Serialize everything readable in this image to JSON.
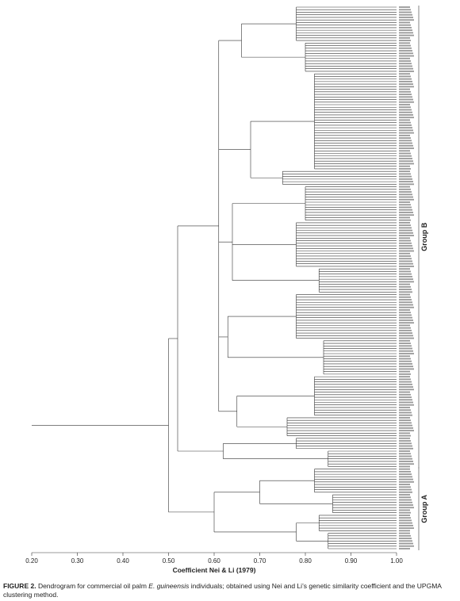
{
  "chart_data": {
    "type": "dendrogram",
    "x_label": "Coefficient Nei & Li (1979)",
    "xlim": [
      0.2,
      1.0
    ],
    "xticks": [
      {
        "value": 0.2,
        "label": "0.20"
      },
      {
        "value": 0.3,
        "label": "0.30"
      },
      {
        "value": 0.4,
        "label": "0.40"
      },
      {
        "value": 0.5,
        "label": "0.50"
      },
      {
        "value": 0.6,
        "label": "0.60"
      },
      {
        "value": 0.7,
        "label": "0.70"
      },
      {
        "value": 0.8,
        "label": "0.80"
      },
      {
        "value": 0.9,
        "label": "0.90"
      },
      {
        "value": 1.0,
        "label": "1.00"
      }
    ],
    "groups": [
      "Group B",
      "Group A"
    ],
    "tree": {
      "height": 0.5,
      "children": [
        {
          "height": 0.52,
          "children": [
            {
              "height": 0.61,
              "children": [
                {
                  "height": 0.66,
                  "children": [
                    {
                      "height": 0.78,
                      "size": 14
                    },
                    {
                      "height": 0.8,
                      "size": 12
                    }
                  ]
                },
                {
                  "height": 0.68,
                  "children": [
                    {
                      "height": 0.82,
                      "size": 38
                    },
                    {
                      "height": 0.75,
                      "size": 6
                    }
                  ]
                },
                {
                  "height": 0.64,
                  "children": [
                    {
                      "height": 0.8,
                      "size": 14
                    },
                    {
                      "height": 0.78,
                      "size": 18
                    },
                    {
                      "height": 0.83,
                      "size": 10
                    }
                  ]
                },
                {
                  "height": 0.63,
                  "children": [
                    {
                      "height": 0.78,
                      "size": 18
                    },
                    {
                      "height": 0.84,
                      "size": 14
                    }
                  ]
                },
                {
                  "height": 0.65,
                  "children": [
                    {
                      "height": 0.82,
                      "size": 16
                    },
                    {
                      "height": 0.76,
                      "size": 8
                    }
                  ]
                }
              ]
            },
            {
              "height": 0.62,
              "children": [
                {
                  "height": 0.78,
                  "size": 5
                },
                {
                  "height": 0.85,
                  "size": 7
                }
              ]
            }
          ]
        },
        {
          "height": 0.6,
          "children": [
            {
              "height": 0.7,
              "children": [
                {
                  "height": 0.82,
                  "size": 10
                },
                {
                  "height": 0.86,
                  "size": 8
                }
              ]
            },
            {
              "height": 0.78,
              "children": [
                {
                  "height": 0.83,
                  "size": 7
                },
                {
                  "height": 0.85,
                  "size": 7
                }
              ]
            }
          ]
        }
      ]
    }
  },
  "caption": {
    "label": "FIGURE 2.",
    "parts": [
      "Dendrogram for commercial oil palm ",
      "E. guineensis",
      " individuals; obtained using Nei and Li’s genetic similarity coefficient and the UPGMA clustering method."
    ]
  }
}
